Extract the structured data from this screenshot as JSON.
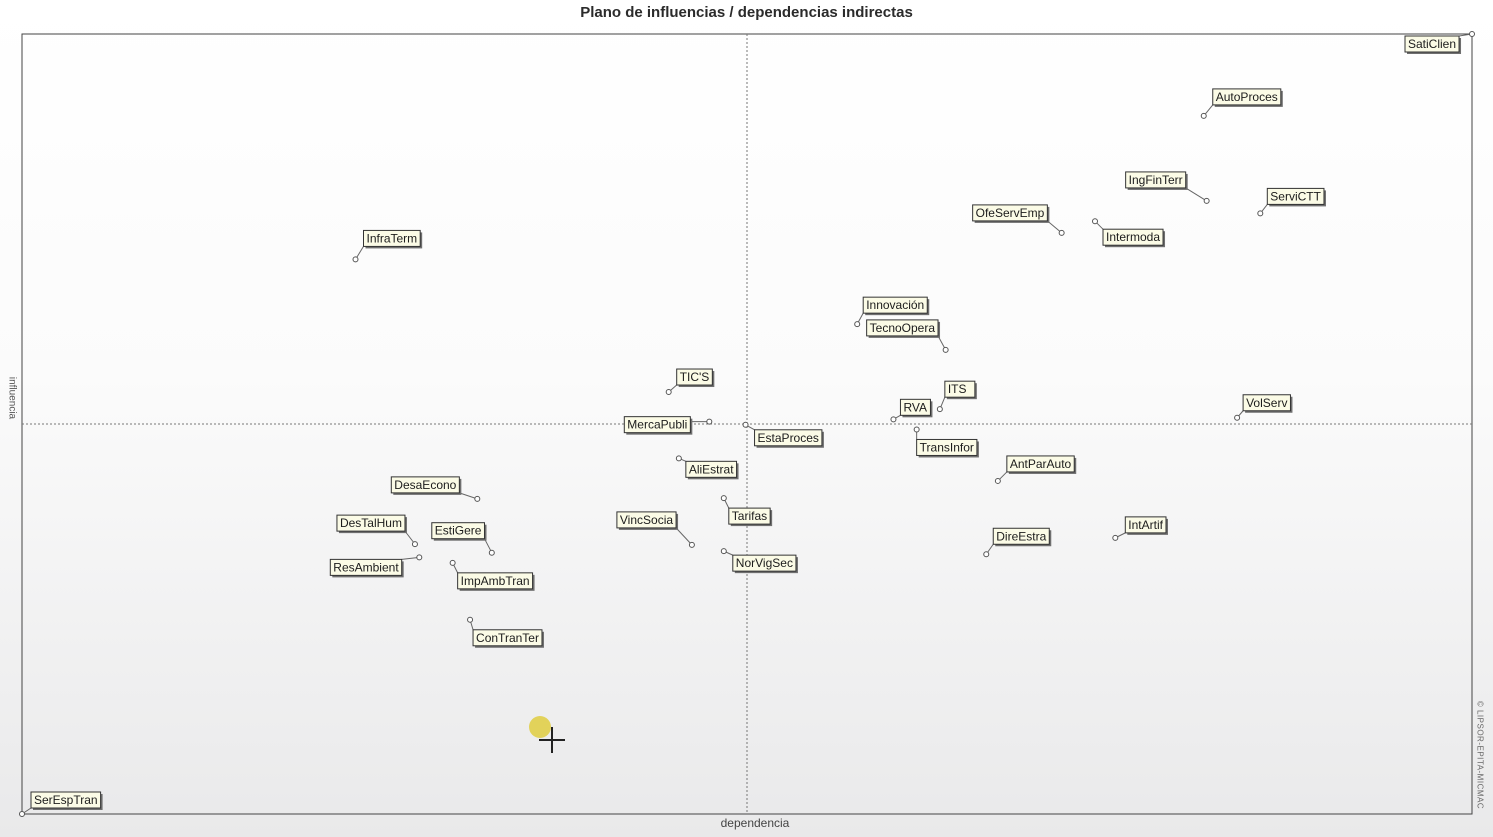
{
  "chart_data": {
    "type": "scatter",
    "title": "Plano de influencias / dependencias indirectas",
    "xlabel": "dependencia",
    "ylabel": "influencia",
    "side_label": "© LIPSOR-EPITA-MICMAC",
    "xlim": [
      0,
      100
    ],
    "ylim": [
      0,
      100
    ],
    "x_divider": 50,
    "y_divider": 50,
    "grid": false,
    "legend": "none",
    "points": [
      {
        "label": "SatiClien",
        "x": 100,
        "y": 100
      },
      {
        "label": "AutoProces",
        "x": 81.5,
        "y": 89.5
      },
      {
        "label": "IngFinTerr",
        "x": 81.7,
        "y": 78.6
      },
      {
        "label": "ServiCTT",
        "x": 85.4,
        "y": 77
      },
      {
        "label": "OfeServEmp",
        "x": 71.7,
        "y": 74.5
      },
      {
        "label": "Intermoda",
        "x": 74,
        "y": 76
      },
      {
        "label": "InfraTerm",
        "x": 23,
        "y": 71.1
      },
      {
        "label": "Innovación",
        "x": 57.6,
        "y": 62.8
      },
      {
        "label": "TecnoOpera",
        "x": 63.7,
        "y": 59.5
      },
      {
        "label": "TIC'S",
        "x": 44.6,
        "y": 54.1
      },
      {
        "label": "ITS",
        "x": 63.3,
        "y": 51.9
      },
      {
        "label": "RVA",
        "x": 60.1,
        "y": 50.6
      },
      {
        "label": "VolServ",
        "x": 83.8,
        "y": 50.8
      },
      {
        "label": "MercaPubli",
        "x": 47.4,
        "y": 50.3
      },
      {
        "label": "EstaProces",
        "x": 49.9,
        "y": 49.9
      },
      {
        "label": "TransInfor",
        "x": 61.7,
        "y": 49.3
      },
      {
        "label": "AntParAuto",
        "x": 67.3,
        "y": 42.7
      },
      {
        "label": "AliEstrat",
        "x": 45.3,
        "y": 45.6
      },
      {
        "label": "DesaEcono",
        "x": 31.4,
        "y": 40.4
      },
      {
        "label": "Tarifas",
        "x": 48.4,
        "y": 40.5
      },
      {
        "label": "DesTalHum",
        "x": 27.1,
        "y": 34.6
      },
      {
        "label": "EstiGere",
        "x": 32.4,
        "y": 33.5
      },
      {
        "label": "VincSocia",
        "x": 46.2,
        "y": 34.5
      },
      {
        "label": "NorVigSec",
        "x": 48.4,
        "y": 33.7
      },
      {
        "label": "DireEstra",
        "x": 66.5,
        "y": 33.3
      },
      {
        "label": "IntArtif",
        "x": 75.4,
        "y": 35.4
      },
      {
        "label": "ResAmbient",
        "x": 27.4,
        "y": 32.9
      },
      {
        "label": "ImpAmbTran",
        "x": 29.7,
        "y": 32.2
      },
      {
        "label": "ConTranTer",
        "x": 30.9,
        "y": 24.9
      },
      {
        "label": "SerEspTran",
        "x": 0,
        "y": 0
      }
    ]
  }
}
